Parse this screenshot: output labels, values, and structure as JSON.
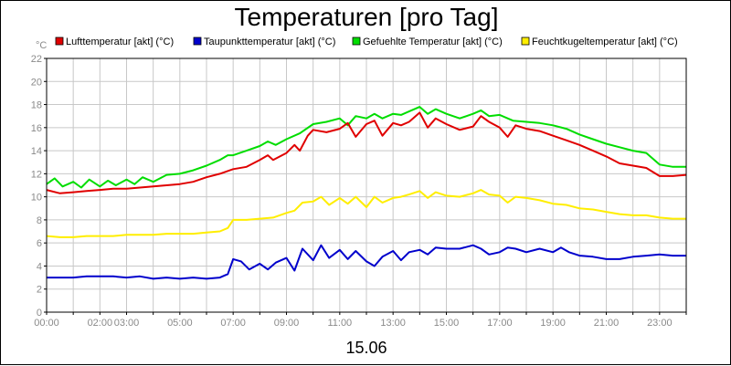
{
  "chart_data": {
    "type": "line",
    "title": "Temperaturen [pro Tag]",
    "xlabel": "15.06",
    "ylabel": "°C",
    "ylim": [
      0,
      22
    ],
    "yticks": [
      "0",
      "2",
      "4",
      "6",
      "8",
      "10",
      "12",
      "14",
      "16",
      "18",
      "20",
      "22"
    ],
    "xlim_hours": [
      0,
      24
    ],
    "xticks": [
      {
        "h": 0,
        "label": "00:00"
      },
      {
        "h": 2,
        "label": "02:00"
      },
      {
        "h": 3,
        "label": "03:00"
      },
      {
        "h": 5,
        "label": "05:00"
      },
      {
        "h": 7,
        "label": "07:00"
      },
      {
        "h": 9,
        "label": "09:00"
      },
      {
        "h": 11,
        "label": "11:00"
      },
      {
        "h": 13,
        "label": "13:00"
      },
      {
        "h": 15,
        "label": "15:00"
      },
      {
        "h": 17,
        "label": "17:00"
      },
      {
        "h": 19,
        "label": "19:00"
      },
      {
        "h": 21,
        "label": "21:00"
      },
      {
        "h": 23,
        "label": "23:00"
      }
    ],
    "grid": true,
    "legend_position": "top",
    "series": [
      {
        "name": "Lufttemperatur [akt] (°C)",
        "color": "#e00000",
        "points": [
          [
            0,
            10.6
          ],
          [
            0.5,
            10.3
          ],
          [
            1,
            10.4
          ],
          [
            1.5,
            10.5
          ],
          [
            2,
            10.6
          ],
          [
            2.5,
            10.7
          ],
          [
            3,
            10.7
          ],
          [
            3.5,
            10.8
          ],
          [
            4,
            10.9
          ],
          [
            4.5,
            11.0
          ],
          [
            5,
            11.1
          ],
          [
            5.5,
            11.3
          ],
          [
            6,
            11.7
          ],
          [
            6.5,
            12.0
          ],
          [
            7,
            12.4
          ],
          [
            7.5,
            12.6
          ],
          [
            8,
            13.2
          ],
          [
            8.3,
            13.6
          ],
          [
            8.5,
            13.2
          ],
          [
            9,
            13.8
          ],
          [
            9.3,
            14.5
          ],
          [
            9.5,
            14.0
          ],
          [
            9.8,
            15.3
          ],
          [
            10,
            15.8
          ],
          [
            10.5,
            15.6
          ],
          [
            11,
            15.9
          ],
          [
            11.3,
            16.4
          ],
          [
            11.6,
            15.2
          ],
          [
            12,
            16.3
          ],
          [
            12.3,
            16.6
          ],
          [
            12.6,
            15.3
          ],
          [
            13,
            16.4
          ],
          [
            13.3,
            16.2
          ],
          [
            13.6,
            16.5
          ],
          [
            14,
            17.3
          ],
          [
            14.3,
            16.0
          ],
          [
            14.6,
            16.8
          ],
          [
            15,
            16.3
          ],
          [
            15.5,
            15.8
          ],
          [
            16,
            16.1
          ],
          [
            16.3,
            17.0
          ],
          [
            16.6,
            16.5
          ],
          [
            17,
            16.0
          ],
          [
            17.3,
            15.2
          ],
          [
            17.6,
            16.2
          ],
          [
            18,
            15.9
          ],
          [
            18.5,
            15.7
          ],
          [
            19,
            15.3
          ],
          [
            19.5,
            14.9
          ],
          [
            20,
            14.5
          ],
          [
            20.5,
            14.0
          ],
          [
            21,
            13.5
          ],
          [
            21.5,
            12.9
          ],
          [
            22,
            12.7
          ],
          [
            22.5,
            12.5
          ],
          [
            23,
            11.8
          ],
          [
            23.5,
            11.8
          ],
          [
            24,
            11.9
          ]
        ]
      },
      {
        "name": "Taupunkttemperatur [akt] (°C)",
        "color": "#0000cc",
        "points": [
          [
            0,
            3.0
          ],
          [
            0.5,
            3.0
          ],
          [
            1,
            3.0
          ],
          [
            1.5,
            3.1
          ],
          [
            2,
            3.1
          ],
          [
            2.5,
            3.1
          ],
          [
            3,
            3.0
          ],
          [
            3.5,
            3.1
          ],
          [
            4,
            2.9
          ],
          [
            4.5,
            3.0
          ],
          [
            5,
            2.9
          ],
          [
            5.5,
            3.0
          ],
          [
            6,
            2.9
          ],
          [
            6.5,
            3.0
          ],
          [
            6.8,
            3.3
          ],
          [
            7,
            4.6
          ],
          [
            7.3,
            4.4
          ],
          [
            7.6,
            3.7
          ],
          [
            8,
            4.2
          ],
          [
            8.3,
            3.7
          ],
          [
            8.6,
            4.3
          ],
          [
            9,
            4.7
          ],
          [
            9.3,
            3.6
          ],
          [
            9.6,
            5.5
          ],
          [
            10,
            4.5
          ],
          [
            10.3,
            5.8
          ],
          [
            10.6,
            4.7
          ],
          [
            11,
            5.4
          ],
          [
            11.3,
            4.6
          ],
          [
            11.6,
            5.3
          ],
          [
            12,
            4.4
          ],
          [
            12.3,
            4.0
          ],
          [
            12.6,
            4.8
          ],
          [
            13,
            5.3
          ],
          [
            13.3,
            4.5
          ],
          [
            13.6,
            5.2
          ],
          [
            14,
            5.4
          ],
          [
            14.3,
            5.0
          ],
          [
            14.6,
            5.6
          ],
          [
            15,
            5.5
          ],
          [
            15.5,
            5.5
          ],
          [
            16,
            5.8
          ],
          [
            16.3,
            5.5
          ],
          [
            16.6,
            5.0
          ],
          [
            17,
            5.2
          ],
          [
            17.3,
            5.6
          ],
          [
            17.6,
            5.5
          ],
          [
            18,
            5.2
          ],
          [
            18.5,
            5.5
          ],
          [
            19,
            5.2
          ],
          [
            19.3,
            5.6
          ],
          [
            19.6,
            5.2
          ],
          [
            20,
            4.9
          ],
          [
            20.5,
            4.8
          ],
          [
            21,
            4.6
          ],
          [
            21.5,
            4.6
          ],
          [
            22,
            4.8
          ],
          [
            22.5,
            4.9
          ],
          [
            23,
            5.0
          ],
          [
            23.5,
            4.9
          ],
          [
            24,
            4.9
          ]
        ]
      },
      {
        "name": "Gefuehlte Temperatur [akt] (°C)",
        "color": "#00dd00",
        "points": [
          [
            0,
            11.1
          ],
          [
            0.3,
            11.6
          ],
          [
            0.6,
            10.9
          ],
          [
            1,
            11.3
          ],
          [
            1.3,
            10.8
          ],
          [
            1.6,
            11.5
          ],
          [
            2,
            10.9
          ],
          [
            2.3,
            11.4
          ],
          [
            2.6,
            11.0
          ],
          [
            3,
            11.5
          ],
          [
            3.3,
            11.1
          ],
          [
            3.6,
            11.7
          ],
          [
            4,
            11.3
          ],
          [
            4.5,
            11.9
          ],
          [
            5,
            12.0
          ],
          [
            5.5,
            12.3
          ],
          [
            6,
            12.7
          ],
          [
            6.5,
            13.2
          ],
          [
            6.8,
            13.6
          ],
          [
            7,
            13.6
          ],
          [
            7.5,
            14.0
          ],
          [
            8,
            14.4
          ],
          [
            8.3,
            14.8
          ],
          [
            8.6,
            14.5
          ],
          [
            9,
            15.0
          ],
          [
            9.5,
            15.5
          ],
          [
            10,
            16.3
          ],
          [
            10.5,
            16.5
          ],
          [
            11,
            16.8
          ],
          [
            11.3,
            16.2
          ],
          [
            11.6,
            17.0
          ],
          [
            12,
            16.8
          ],
          [
            12.3,
            17.2
          ],
          [
            12.6,
            16.8
          ],
          [
            13,
            17.2
          ],
          [
            13.3,
            17.1
          ],
          [
            13.6,
            17.4
          ],
          [
            14,
            17.8
          ],
          [
            14.3,
            17.2
          ],
          [
            14.6,
            17.6
          ],
          [
            15,
            17.2
          ],
          [
            15.5,
            16.8
          ],
          [
            16,
            17.2
          ],
          [
            16.3,
            17.5
          ],
          [
            16.6,
            17.0
          ],
          [
            17,
            17.1
          ],
          [
            17.5,
            16.6
          ],
          [
            18,
            16.5
          ],
          [
            18.5,
            16.4
          ],
          [
            19,
            16.2
          ],
          [
            19.5,
            15.9
          ],
          [
            20,
            15.4
          ],
          [
            20.5,
            15.0
          ],
          [
            21,
            14.6
          ],
          [
            21.5,
            14.3
          ],
          [
            22,
            14.0
          ],
          [
            22.5,
            13.8
          ],
          [
            23,
            12.8
          ],
          [
            23.5,
            12.6
          ],
          [
            24,
            12.6
          ]
        ]
      },
      {
        "name": "Feuchtkugeltemperatur [akt] (°C)",
        "color": "#ffee00",
        "points": [
          [
            0,
            6.6
          ],
          [
            0.5,
            6.5
          ],
          [
            1,
            6.5
          ],
          [
            1.5,
            6.6
          ],
          [
            2,
            6.6
          ],
          [
            2.5,
            6.6
          ],
          [
            3,
            6.7
          ],
          [
            3.5,
            6.7
          ],
          [
            4,
            6.7
          ],
          [
            4.5,
            6.8
          ],
          [
            5,
            6.8
          ],
          [
            5.5,
            6.8
          ],
          [
            6,
            6.9
          ],
          [
            6.5,
            7.0
          ],
          [
            6.8,
            7.3
          ],
          [
            7,
            8.0
          ],
          [
            7.5,
            8.0
          ],
          [
            8,
            8.1
          ],
          [
            8.5,
            8.2
          ],
          [
            9,
            8.6
          ],
          [
            9.3,
            8.8
          ],
          [
            9.6,
            9.5
          ],
          [
            10,
            9.6
          ],
          [
            10.3,
            10.0
          ],
          [
            10.6,
            9.3
          ],
          [
            11,
            9.9
          ],
          [
            11.3,
            9.4
          ],
          [
            11.6,
            10.0
          ],
          [
            12,
            9.1
          ],
          [
            12.3,
            10.0
          ],
          [
            12.6,
            9.5
          ],
          [
            13,
            9.9
          ],
          [
            13.3,
            10.0
          ],
          [
            13.6,
            10.2
          ],
          [
            14,
            10.5
          ],
          [
            14.3,
            9.9
          ],
          [
            14.6,
            10.4
          ],
          [
            15,
            10.1
          ],
          [
            15.5,
            10.0
          ],
          [
            16,
            10.3
          ],
          [
            16.3,
            10.6
          ],
          [
            16.6,
            10.2
          ],
          [
            17,
            10.1
          ],
          [
            17.3,
            9.5
          ],
          [
            17.6,
            10.0
          ],
          [
            18,
            9.9
          ],
          [
            18.5,
            9.7
          ],
          [
            19,
            9.4
          ],
          [
            19.5,
            9.3
          ],
          [
            20,
            9.0
          ],
          [
            20.5,
            8.9
          ],
          [
            21,
            8.7
          ],
          [
            21.5,
            8.5
          ],
          [
            22,
            8.4
          ],
          [
            22.5,
            8.4
          ],
          [
            23,
            8.2
          ],
          [
            23.5,
            8.1
          ],
          [
            24,
            8.1
          ]
        ]
      }
    ]
  }
}
